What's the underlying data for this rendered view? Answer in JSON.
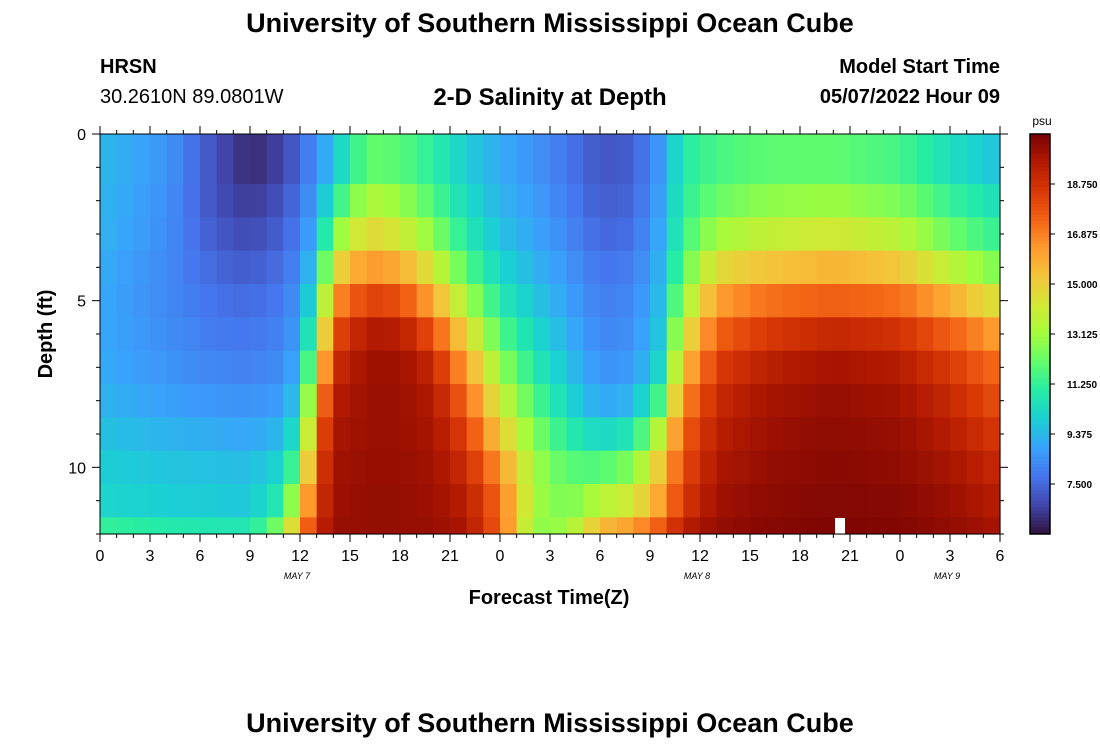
{
  "page": {
    "title": "University of Southern Mississippi Ocean Cube",
    "title_repeat": "University of Southern Mississippi Ocean Cube"
  },
  "header": {
    "station": "HRSN",
    "coordinates": "30.2610N  89.0801W",
    "plot_title": "2-D Salinity at Depth",
    "model_start_label": "Model Start Time",
    "model_start_value": "05/07/2022 Hour 09"
  },
  "chart_data": {
    "type": "heatmap",
    "title": "2-D Salinity at Depth",
    "xlabel": "Forecast Time(Z)",
    "ylabel": "Depth (ft)",
    "x_hours_range": [
      0,
      54
    ],
    "y_depth_range": [
      0,
      12
    ],
    "x_ticks": [
      {
        "h": 0,
        "label": "0"
      },
      {
        "h": 3,
        "label": "3"
      },
      {
        "h": 6,
        "label": "6"
      },
      {
        "h": 9,
        "label": "9"
      },
      {
        "h": 12,
        "label": "12"
      },
      {
        "h": 15,
        "label": "15"
      },
      {
        "h": 18,
        "label": "18"
      },
      {
        "h": 21,
        "label": "21"
      },
      {
        "h": 24,
        "label": "0"
      },
      {
        "h": 27,
        "label": "3"
      },
      {
        "h": 30,
        "label": "6"
      },
      {
        "h": 33,
        "label": "9"
      },
      {
        "h": 36,
        "label": "12"
      },
      {
        "h": 39,
        "label": "15"
      },
      {
        "h": 42,
        "label": "18"
      },
      {
        "h": 45,
        "label": "21"
      },
      {
        "h": 48,
        "label": "0"
      },
      {
        "h": 51,
        "label": "3"
      },
      {
        "h": 54,
        "label": "6"
      }
    ],
    "date_labels": [
      {
        "h": 12,
        "label": "MAY 7"
      },
      {
        "h": 36,
        "label": "MAY 8"
      },
      {
        "h": 51,
        "label": "MAY 9"
      }
    ],
    "y_ticks": [
      {
        "d": 0,
        "label": "0"
      },
      {
        "d": 5,
        "label": "5"
      },
      {
        "d": 10,
        "label": "10"
      }
    ],
    "depth_levels_ft": [
      0,
      1.25,
      2.5,
      3.5,
      4.5,
      5.5,
      6.5,
      7.5,
      8.5,
      9.5,
      10.5,
      11.5,
      12
    ],
    "salinity_profiles": [
      {
        "h": 0,
        "values": [
          9.4,
          9.4,
          9.3,
          9.2,
          9.0,
          9.0,
          9.0,
          9.1,
          9.4,
          9.8,
          10.0,
          10.3,
          12.2
        ]
      },
      {
        "h": 4,
        "values": [
          8.6,
          8.5,
          8.4,
          8.3,
          8.2,
          8.3,
          8.4,
          8.6,
          9.0,
          9.5,
          9.8,
          10.0,
          11.8
        ]
      },
      {
        "h": 7,
        "values": [
          7.0,
          6.8,
          7.0,
          7.3,
          7.6,
          7.8,
          8.0,
          8.3,
          8.8,
          9.3,
          9.8,
          9.9,
          11.6
        ]
      },
      {
        "h": 9,
        "values": [
          6.0,
          6.2,
          6.6,
          7.0,
          7.4,
          7.7,
          7.9,
          8.2,
          8.7,
          9.2,
          9.7,
          9.8,
          11.6
        ]
      },
      {
        "h": 11,
        "values": [
          6.5,
          6.8,
          7.2,
          7.5,
          7.8,
          8.0,
          8.2,
          8.5,
          9.0,
          9.8,
          10.6,
          11.5,
          14.0
        ]
      },
      {
        "h": 12,
        "values": [
          7.3,
          7.6,
          7.9,
          8.2,
          8.5,
          8.8,
          9.0,
          9.5,
          10.5,
          11.5,
          13.5,
          15.5,
          17.0
        ]
      },
      {
        "h": 13,
        "values": [
          8.2,
          8.6,
          9.0,
          9.6,
          10.5,
          11.5,
          13.0,
          15.0,
          16.5,
          17.5,
          18.0,
          18.5,
          19.2
        ]
      },
      {
        "h": 14,
        "values": [
          9.2,
          10.0,
          11.5,
          13.5,
          15.5,
          17.3,
          18.5,
          19.2,
          19.6,
          19.8,
          19.9,
          20.0,
          20.1
        ]
      },
      {
        "h": 16,
        "values": [
          11.5,
          12.5,
          14.0,
          15.5,
          17.3,
          19.2,
          19.9,
          20.0,
          20.0,
          20.0,
          20.1,
          20.1,
          20.1
        ]
      },
      {
        "h": 18,
        "values": [
          11.3,
          12.3,
          13.4,
          15.0,
          16.9,
          19.0,
          19.9,
          20.0,
          20.0,
          20.0,
          20.1,
          20.1,
          20.1
        ]
      },
      {
        "h": 20,
        "values": [
          10.8,
          11.3,
          12.0,
          13.3,
          15.0,
          17.0,
          18.7,
          19.4,
          19.7,
          19.8,
          19.9,
          20.0,
          20.1
        ]
      },
      {
        "h": 22,
        "values": [
          9.8,
          10.0,
          10.5,
          11.2,
          12.4,
          14.0,
          15.5,
          16.8,
          17.8,
          18.6,
          19.2,
          19.5,
          19.8
        ]
      },
      {
        "h": 24,
        "values": [
          9.0,
          9.1,
          9.4,
          9.8,
          10.5,
          11.3,
          12.3,
          13.5,
          14.6,
          15.8,
          17.0,
          17.5,
          17.5
        ]
      },
      {
        "h": 26,
        "values": [
          8.4,
          8.6,
          8.8,
          9.1,
          9.5,
          10.0,
          10.6,
          11.3,
          12.2,
          13.0,
          13.3,
          13.0,
          12.5
        ]
      },
      {
        "h": 28,
        "values": [
          7.7,
          7.9,
          8.1,
          8.4,
          8.7,
          9.0,
          9.4,
          9.9,
          10.5,
          11.5,
          12.2,
          12.5,
          13.5
        ]
      },
      {
        "h": 30,
        "values": [
          7.0,
          7.1,
          7.3,
          7.6,
          7.9,
          8.1,
          8.3,
          8.6,
          9.3,
          11.0,
          12.5,
          14.5,
          16.5
        ]
      },
      {
        "h": 32,
        "values": [
          7.2,
          7.3,
          7.5,
          7.8,
          8.1,
          8.3,
          8.5,
          8.8,
          9.8,
          11.8,
          13.5,
          15.0,
          17.5
        ]
      },
      {
        "h": 33.5,
        "values": [
          8.5,
          8.6,
          8.8,
          9.0,
          9.3,
          9.5,
          9.8,
          10.5,
          12.5,
          14.5,
          15.5,
          16.5,
          18.5
        ]
      },
      {
        "h": 35,
        "values": [
          10.8,
          11.0,
          11.2,
          11.6,
          12.3,
          13.5,
          14.8,
          16.0,
          17.2,
          17.8,
          18.2,
          18.8,
          19.8
        ]
      },
      {
        "h": 37,
        "values": [
          11.5,
          11.7,
          12.5,
          13.8,
          15.5,
          17.0,
          18.0,
          18.8,
          19.2,
          19.5,
          19.8,
          20.0,
          20.2
        ]
      },
      {
        "h": 40,
        "values": [
          11.9,
          12.0,
          13.3,
          14.3,
          16.3,
          18.0,
          19.0,
          19.6,
          19.9,
          20.0,
          20.2,
          20.3,
          20.5
        ]
      },
      {
        "h": 44,
        "values": [
          11.9,
          12.1,
          13.6,
          14.8,
          16.6,
          18.5,
          19.6,
          20.0,
          20.2,
          20.3,
          20.4,
          20.5,
          20.6
        ]
      },
      {
        "h": 48,
        "values": [
          11.4,
          11.7,
          13.0,
          14.2,
          16.2,
          18.2,
          19.2,
          19.7,
          20.0,
          20.1,
          20.3,
          20.4,
          20.5
        ]
      },
      {
        "h": 51,
        "values": [
          10.3,
          10.6,
          11.8,
          12.6,
          14.8,
          17.0,
          18.1,
          18.8,
          19.2,
          19.6,
          19.9,
          20.1,
          20.3
        ]
      },
      {
        "h": 54,
        "values": [
          9.2,
          9.8,
          10.8,
          11.6,
          13.2,
          15.5,
          16.8,
          17.6,
          18.2,
          18.8,
          19.2,
          19.6,
          19.8
        ]
      }
    ],
    "colorbar": {
      "unit": "psu",
      "min": 5.625,
      "max": 20.625,
      "tick_values": [
        7.5,
        9.375,
        11.25,
        13.125,
        15.0,
        16.875,
        18.75
      ],
      "tick_labels": [
        "7.500",
        "9.375",
        "11.250",
        "13.125",
        "15.000",
        "16.875",
        "18.750"
      ],
      "colormap": [
        "#30123b",
        "#4145ab",
        "#4675ed",
        "#39a2fc",
        "#1bcfd4",
        "#24eca6",
        "#61fc6c",
        "#a4fc3b",
        "#d1e834",
        "#f3c63a",
        "#fe9b2d",
        "#f36315",
        "#d93806",
        "#b11901",
        "#7a0403"
      ]
    },
    "marker": {
      "h": 44.4,
      "label": "marker"
    }
  }
}
